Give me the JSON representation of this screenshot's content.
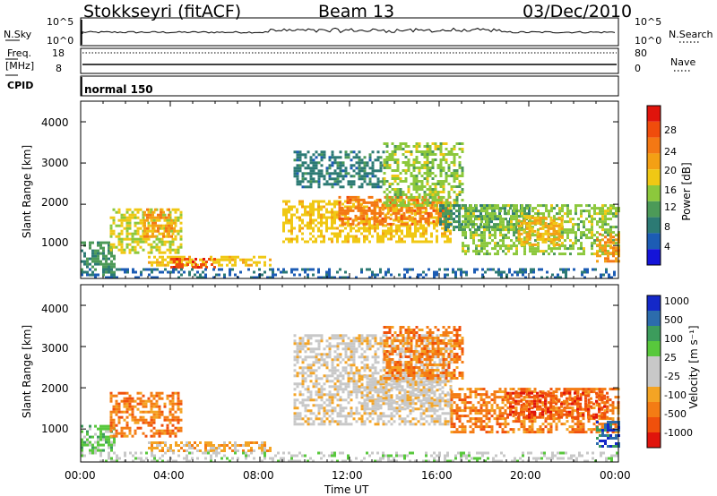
{
  "header": {
    "station": "Stokkseyri (fitACF)",
    "beam": "Beam 13",
    "date": "03/Dec/2010"
  },
  "status": {
    "nsky_label": "N.Sky",
    "nsky_ticks": [
      "10^5",
      "10^0"
    ],
    "nsearch_label": "N.Search",
    "nsearch_ticks": [
      "10^5",
      "10^0"
    ],
    "freq_label": "Freq.",
    "freq_unit": "[MHz]",
    "freq_ticks": [
      "18",
      "8"
    ],
    "nave_label": "Nave",
    "nave_ticks": [
      "80",
      "0"
    ],
    "cpid_label": "CPID",
    "cpid_value": "normal 150"
  },
  "colors": {
    "power_scale": [
      "#1414d8",
      "#1c5cb4",
      "#2c7a74",
      "#4c9a58",
      "#8cc83c",
      "#f0c814",
      "#f4a014",
      "#f47814",
      "#f04c0c",
      "#e0140c"
    ],
    "velocity_scale": [
      "#e0140c",
      "#f0500c",
      "#f47c14",
      "#f4a424",
      "#c8c8c8",
      "#c8c8c8",
      "#58c83c",
      "#3c9c5c",
      "#2c6cac",
      "#1428c8"
    ],
    "ground_scatter": "#c0c0bc"
  },
  "chart_data": [
    {
      "type": "heatmap",
      "name": "power",
      "ylabel": "Slant Range [km]",
      "yticks": [
        "1000",
        "2000",
        "3000",
        "4000"
      ],
      "ylim": [
        200,
        4500
      ],
      "xlim": [
        0,
        24
      ],
      "xticks": [],
      "colorbar_label": "Power [dB]",
      "colorbar_ticks": [
        "4",
        "8",
        "12",
        "16",
        "20",
        "24",
        "28"
      ],
      "colorbar_range": [
        0,
        32
      ],
      "regions": [
        {
          "t0": 0.0,
          "t1": 1.5,
          "r0": 300,
          "r1": 1100,
          "level": 10
        },
        {
          "t0": 1.3,
          "t1": 4.5,
          "r0": 800,
          "r1": 1900,
          "level": 16
        },
        {
          "t0": 2.8,
          "t1": 4.2,
          "r0": 1200,
          "r1": 1900,
          "level": 22
        },
        {
          "t0": 3.0,
          "t1": 8.5,
          "r0": 500,
          "r1": 750,
          "level": 18
        },
        {
          "t0": 4.0,
          "t1": 6.0,
          "r0": 500,
          "r1": 700,
          "level": 28
        },
        {
          "t0": 9.5,
          "t1": 13.5,
          "r0": 2400,
          "r1": 3300,
          "level": 8
        },
        {
          "t0": 9.0,
          "t1": 16.5,
          "r0": 1100,
          "r1": 2100,
          "level": 18
        },
        {
          "t0": 11.5,
          "t1": 16.5,
          "r0": 1500,
          "r1": 2200,
          "level": 24
        },
        {
          "t0": 13.5,
          "t1": 17.0,
          "r0": 2000,
          "r1": 3500,
          "level": 14
        },
        {
          "t0": 16.0,
          "t1": 20.0,
          "r0": 1400,
          "r1": 2000,
          "level": 10
        },
        {
          "t0": 17.0,
          "t1": 24.0,
          "r0": 800,
          "r1": 2000,
          "level": 14
        },
        {
          "t0": 19.5,
          "t1": 21.5,
          "r0": 1000,
          "r1": 1700,
          "level": 20
        },
        {
          "t0": 23.0,
          "t1": 24.0,
          "r0": 600,
          "r1": 1300,
          "level": 22
        },
        {
          "t0": 0.0,
          "t1": 24.0,
          "r0": 200,
          "r1": 450,
          "level": 6
        }
      ]
    },
    {
      "type": "heatmap",
      "name": "velocity",
      "ylabel": "Slant Range [km]",
      "yticks": [
        "1000",
        "2000",
        "3000",
        "4000"
      ],
      "ylim": [
        200,
        4500
      ],
      "xlim": [
        0,
        24
      ],
      "xlabel": "Time UT",
      "xticks": [
        "00:00",
        "04:00",
        "08:00",
        "12:00",
        "16:00",
        "20:00",
        "00:00"
      ],
      "colorbar_label": "Velocity [m s⁻¹]",
      "colorbar_ticks": [
        "-1000",
        "-500",
        "-100",
        "-25",
        "25",
        "100",
        "500",
        "1000"
      ],
      "regions": [
        {
          "t0": 0.0,
          "t1": 1.5,
          "r0": 500,
          "r1": 1100,
          "level": 6
        },
        {
          "t0": 1.3,
          "t1": 4.5,
          "r0": 800,
          "r1": 1900,
          "level": 2
        },
        {
          "t0": 3.0,
          "t1": 8.5,
          "r0": 450,
          "r1": 700,
          "level": 3
        },
        {
          "t0": 9.5,
          "t1": 16.5,
          "r0": 1100,
          "r1": 3300,
          "level": 4
        },
        {
          "t0": 12.5,
          "t1": 16.5,
          "r0": 1500,
          "r1": 2300,
          "level": 4
        },
        {
          "t0": 13.5,
          "t1": 17.0,
          "r0": 2200,
          "r1": 3500,
          "level": 2
        },
        {
          "t0": 16.5,
          "t1": 24.0,
          "r0": 900,
          "r1": 2000,
          "level": 2
        },
        {
          "t0": 19.0,
          "t1": 23.5,
          "r0": 1300,
          "r1": 1900,
          "level": 1
        },
        {
          "t0": 23.0,
          "t1": 24.0,
          "r0": 600,
          "r1": 1200,
          "level": 8
        },
        {
          "t0": 0.0,
          "t1": 24.0,
          "r0": 200,
          "r1": 450,
          "level": 5
        }
      ]
    }
  ]
}
